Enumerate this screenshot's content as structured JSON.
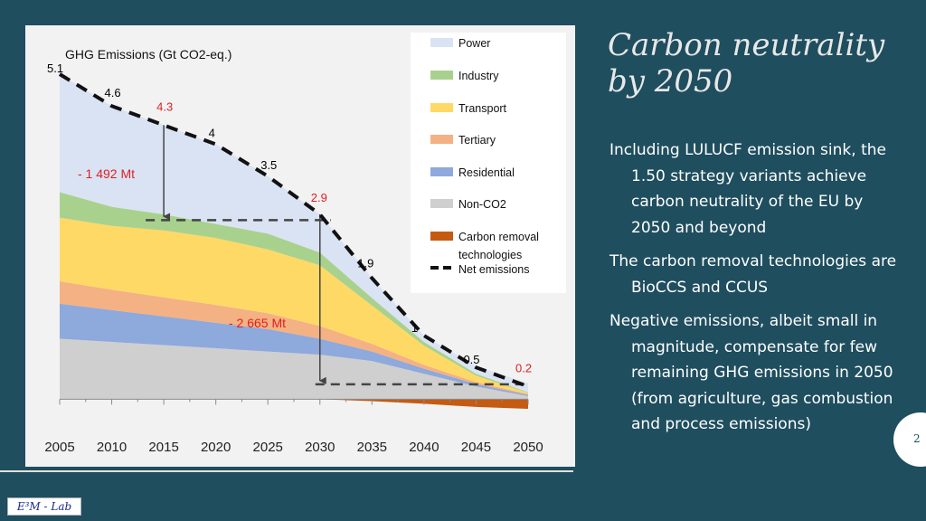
{
  "slide": {
    "title": "Carbon neutrality by 2050",
    "bullets": [
      "Including LULUCF emission sink, the 1.50 strategy variants achieve carbon neutrality of the EU by 2050 and beyond",
      "The carbon removal technologies are BioCCS and CCUS",
      "Negative emissions, albeit small in magnitude, compensate for few remaining GHG emissions in 2050 (from agriculture, gas combustion and process emissions)"
    ],
    "page_number": "2",
    "logo_text": "E³M - Lab"
  },
  "chart_data": {
    "type": "area",
    "ylabel": "GHG Emissions (Gt CO2-eq.)",
    "x": [
      2005,
      2010,
      2015,
      2020,
      2025,
      2030,
      2035,
      2040,
      2045,
      2050
    ],
    "xlim": [
      2005,
      2050
    ],
    "ylim": [
      -0.15,
      5.1
    ],
    "series": [
      {
        "name": "Non-CO2",
        "color": "#cfcfcf",
        "values": [
          0.95,
          0.9,
          0.85,
          0.8,
          0.75,
          0.7,
          0.6,
          0.4,
          0.2,
          0.05
        ]
      },
      {
        "name": "Residential",
        "color": "#8ea9db",
        "values": [
          0.55,
          0.5,
          0.45,
          0.4,
          0.35,
          0.25,
          0.15,
          0.08,
          0.04,
          0.02
        ]
      },
      {
        "name": "Tertiary",
        "color": "#f4b183",
        "values": [
          0.35,
          0.32,
          0.3,
          0.28,
          0.25,
          0.2,
          0.12,
          0.06,
          0.03,
          0.01
        ]
      },
      {
        "name": "Transport",
        "color": "#ffd966",
        "values": [
          1.0,
          1.0,
          1.05,
          1.05,
          1.0,
          0.95,
          0.6,
          0.3,
          0.1,
          0.02
        ]
      },
      {
        "name": "Industry",
        "color": "#a9d18e",
        "values": [
          0.4,
          0.3,
          0.25,
          0.22,
          0.25,
          0.2,
          0.12,
          0.06,
          0.03,
          0.01
        ]
      },
      {
        "name": "Power",
        "color": "#dae3f3",
        "values": [
          1.85,
          1.58,
          1.4,
          1.25,
          0.9,
          0.6,
          0.31,
          0.1,
          0.12,
          0.14
        ]
      },
      {
        "name": "Carbon removal technologies",
        "color": "#c55a11",
        "values": [
          0,
          0,
          0,
          0,
          0,
          0,
          -0.03,
          -0.07,
          -0.12,
          -0.15
        ]
      }
    ],
    "net_emissions": {
      "name": "Net emissions",
      "values": [
        5.1,
        4.6,
        4.3,
        4.0,
        3.5,
        2.9,
        1.9,
        1.0,
        0.5,
        0.2
      ],
      "label_colors": [
        "#000000",
        "#000000",
        "#e02020",
        "#000000",
        "#000000",
        "#e02020",
        "#000000",
        "#000000",
        "#000000",
        "#e02020"
      ]
    },
    "annotations": [
      {
        "text": "- 1 492 Mt",
        "from_year": 2015,
        "from_value": 4.3,
        "to_value": 2.81,
        "color": "#e02020"
      },
      {
        "text": "- 2 665 Mt",
        "from_year": 2030,
        "from_value": 2.9,
        "to_value": 0.235,
        "color": "#e02020"
      }
    ],
    "legend": [
      "Power",
      "Industry",
      "Transport",
      "Tertiary",
      "Residential",
      "Non-CO2",
      "Carbon removal technologies",
      "Net emissions"
    ],
    "legend_position": "top-right"
  }
}
